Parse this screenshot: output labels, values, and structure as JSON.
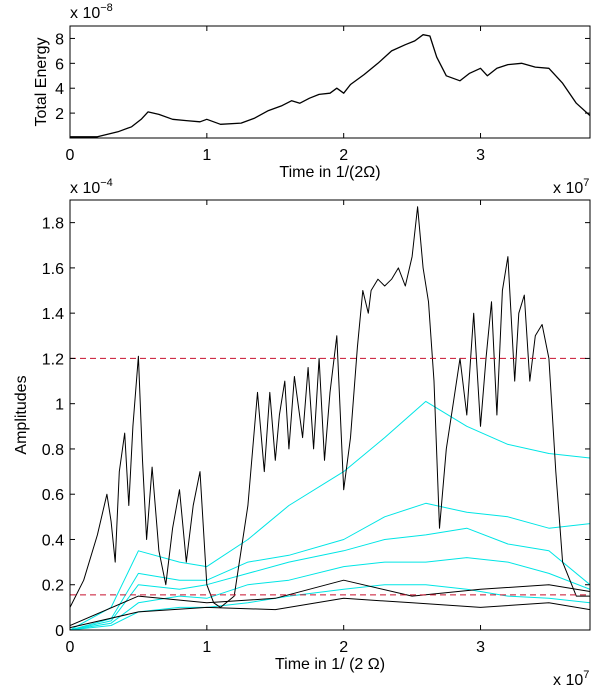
{
  "chart_data": [
    {
      "type": "line",
      "xlabel": "Time in 1/(2Ω)",
      "ylabel": "Total Energy",
      "x_exponent_label": "x 10",
      "x_exponent": "7",
      "y_exponent_label": "x 10",
      "y_exponent": "−8",
      "xlim": [
        0,
        3.8
      ],
      "ylim": [
        0,
        9
      ],
      "x_ticks": [
        0,
        1,
        2,
        3
      ],
      "y_ticks": [
        2,
        4,
        6,
        8
      ],
      "grid": false,
      "series": [
        {
          "color": "#000000",
          "x": [
            0,
            0.2,
            0.35,
            0.45,
            0.52,
            0.57,
            0.65,
            0.75,
            0.85,
            0.95,
            1.0,
            1.1,
            1.25,
            1.35,
            1.45,
            1.55,
            1.62,
            1.68,
            1.75,
            1.82,
            1.9,
            1.95,
            2.0,
            2.05,
            2.15,
            2.25,
            2.35,
            2.45,
            2.52,
            2.58,
            2.63,
            2.68,
            2.75,
            2.85,
            2.92,
            3.0,
            3.05,
            3.12,
            3.2,
            3.3,
            3.4,
            3.5,
            3.6,
            3.7,
            3.8
          ],
          "y": [
            0.1,
            0.1,
            0.5,
            0.9,
            1.5,
            2.1,
            1.9,
            1.5,
            1.4,
            1.3,
            1.5,
            1.1,
            1.2,
            1.6,
            2.2,
            2.6,
            3.0,
            2.8,
            3.2,
            3.5,
            3.6,
            4.0,
            3.6,
            4.3,
            5.1,
            6.0,
            7.0,
            7.5,
            7.8,
            8.3,
            8.2,
            6.5,
            5.0,
            4.6,
            5.2,
            5.6,
            5.0,
            5.6,
            5.9,
            6.0,
            5.7,
            5.6,
            4.4,
            2.8,
            1.8
          ]
        }
      ]
    },
    {
      "type": "line",
      "xlabel": "Time in 1/ (2 Ω)",
      "ylabel": "Amplitudes",
      "x_exponent_label": "x 10",
      "x_exponent": "7",
      "y_exponent_label": "x 10",
      "y_exponent": "−4",
      "xlim": [
        0,
        3.8
      ],
      "ylim": [
        0,
        1.9
      ],
      "x_ticks": [
        0,
        1,
        2,
        3
      ],
      "y_ticks": [
        0,
        0.2,
        0.4,
        0.6,
        0.8,
        1,
        1.2,
        1.4,
        1.6,
        1.8
      ],
      "y_tick_labels": [
        "0",
        "0.2",
        "0.4",
        "0.6",
        "0.8",
        "1",
        "1.2",
        "1.4",
        "1.6",
        "1.8"
      ],
      "grid": false,
      "reference_lines": [
        {
          "y": 1.2,
          "color": "#c8102e",
          "style": "dashed"
        },
        {
          "y": 0.155,
          "color": "#c8102e",
          "style": "dashed"
        }
      ],
      "series": [
        {
          "color": "#000000",
          "x": [
            0,
            0.1,
            0.2,
            0.27,
            0.3,
            0.33,
            0.36,
            0.4,
            0.43,
            0.46,
            0.5,
            0.53,
            0.56,
            0.6,
            0.65,
            0.7,
            0.75,
            0.8,
            0.85,
            0.9,
            0.95,
            1.0,
            1.05,
            1.1,
            1.2,
            1.3,
            1.37,
            1.42,
            1.46,
            1.5,
            1.53,
            1.57,
            1.6,
            1.64,
            1.7,
            1.74,
            1.78,
            1.82,
            1.86,
            1.9,
            1.95,
            2.0,
            2.05,
            2.1,
            2.14,
            2.18,
            2.2,
            2.25,
            2.3,
            2.35,
            2.4,
            2.45,
            2.5,
            2.54,
            2.58,
            2.62,
            2.66,
            2.7,
            2.75,
            2.8,
            2.85,
            2.9,
            2.95,
            3.0,
            3.04,
            3.08,
            3.12,
            3.16,
            3.2,
            3.25,
            3.28,
            3.32,
            3.36,
            3.4,
            3.45,
            3.5,
            3.55,
            3.6,
            3.7,
            3.8
          ],
          "y": [
            0.1,
            0.22,
            0.42,
            0.6,
            0.48,
            0.3,
            0.7,
            0.87,
            0.55,
            0.9,
            1.21,
            0.75,
            0.4,
            0.72,
            0.35,
            0.2,
            0.45,
            0.62,
            0.3,
            0.55,
            0.7,
            0.2,
            0.12,
            0.1,
            0.15,
            0.55,
            1.05,
            0.7,
            1.05,
            0.75,
            0.95,
            1.1,
            0.8,
            1.12,
            0.85,
            1.16,
            0.8,
            1.2,
            0.75,
            1.05,
            1.3,
            0.62,
            0.85,
            1.25,
            1.5,
            1.4,
            1.5,
            1.55,
            1.52,
            1.55,
            1.6,
            1.52,
            1.65,
            1.87,
            1.6,
            1.45,
            1.1,
            0.45,
            0.8,
            1.0,
            1.2,
            0.95,
            1.4,
            0.9,
            1.2,
            1.45,
            0.95,
            1.5,
            1.65,
            1.1,
            1.4,
            1.48,
            1.1,
            1.3,
            1.35,
            1.2,
            0.7,
            0.3,
            0.15,
            0.15
          ]
        },
        {
          "color": "#000000",
          "x": [
            0,
            0.5,
            1.0,
            1.5,
            2.0,
            2.5,
            3.0,
            3.5,
            3.8
          ],
          "y": [
            0.02,
            0.15,
            0.12,
            0.14,
            0.22,
            0.15,
            0.18,
            0.2,
            0.17
          ]
        },
        {
          "color": "#000000",
          "x": [
            0,
            0.5,
            1.0,
            1.5,
            2.0,
            2.5,
            3.0,
            3.5,
            3.8
          ],
          "y": [
            0.01,
            0.08,
            0.1,
            0.09,
            0.14,
            0.12,
            0.1,
            0.12,
            0.09
          ]
        },
        {
          "color": "#00e5e5",
          "x": [
            0,
            0.3,
            0.5,
            0.8,
            1.0,
            1.3,
            1.6,
            2.0,
            2.3,
            2.6,
            2.9,
            3.2,
            3.5,
            3.8
          ],
          "y": [
            0.0,
            0.1,
            0.35,
            0.3,
            0.28,
            0.4,
            0.55,
            0.7,
            0.85,
            1.01,
            0.9,
            0.82,
            0.78,
            0.76
          ]
        },
        {
          "color": "#00e5e5",
          "x": [
            0,
            0.3,
            0.5,
            0.8,
            1.0,
            1.3,
            1.6,
            2.0,
            2.3,
            2.6,
            2.9,
            3.2,
            3.5,
            3.8
          ],
          "y": [
            0.0,
            0.05,
            0.25,
            0.22,
            0.22,
            0.3,
            0.33,
            0.4,
            0.5,
            0.56,
            0.52,
            0.5,
            0.45,
            0.47
          ]
        },
        {
          "color": "#00e5e5",
          "x": [
            0,
            0.3,
            0.5,
            0.8,
            1.0,
            1.3,
            1.6,
            2.0,
            2.3,
            2.6,
            2.9,
            3.2,
            3.5,
            3.8
          ],
          "y": [
            0.0,
            0.04,
            0.2,
            0.18,
            0.2,
            0.25,
            0.3,
            0.35,
            0.4,
            0.42,
            0.45,
            0.38,
            0.35,
            0.2
          ]
        },
        {
          "color": "#00e5e5",
          "x": [
            0,
            0.3,
            0.5,
            0.8,
            1.0,
            1.3,
            1.6,
            2.0,
            2.3,
            2.6,
            2.9,
            3.2,
            3.5,
            3.8
          ],
          "y": [
            0.0,
            0.03,
            0.12,
            0.15,
            0.14,
            0.2,
            0.22,
            0.28,
            0.3,
            0.3,
            0.32,
            0.3,
            0.25,
            0.18
          ]
        },
        {
          "color": "#00e5e5",
          "x": [
            0,
            0.3,
            0.5,
            0.8,
            1.0,
            1.3,
            1.6,
            2.0,
            2.3,
            2.6,
            2.9,
            3.2,
            3.5,
            3.8
          ],
          "y": [
            0.0,
            0.02,
            0.08,
            0.1,
            0.1,
            0.12,
            0.15,
            0.18,
            0.2,
            0.2,
            0.18,
            0.15,
            0.14,
            0.12
          ]
        }
      ]
    }
  ]
}
